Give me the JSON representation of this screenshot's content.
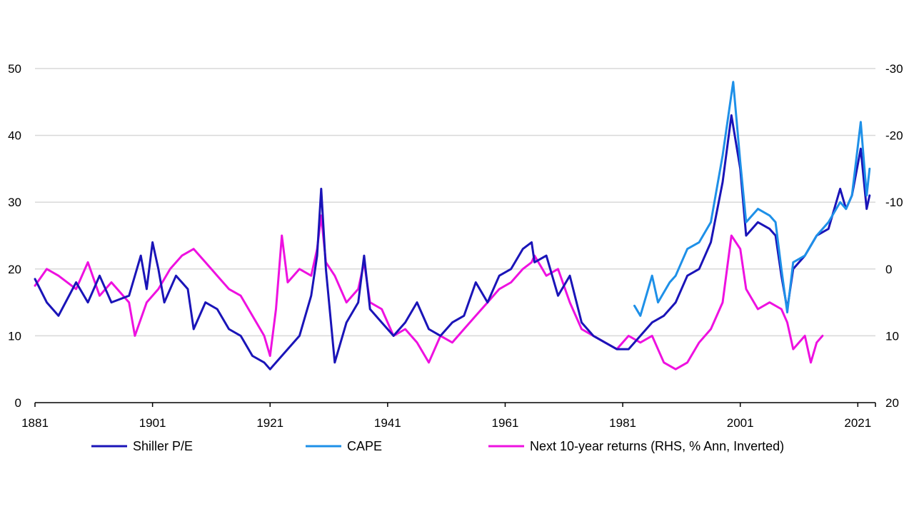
{
  "chart_data": {
    "type": "line",
    "x_ticks": [
      "1881",
      "1901",
      "1921",
      "1941",
      "1961",
      "1981",
      "2001",
      "2021"
    ],
    "xlim": [
      1881,
      2024
    ],
    "y_left": {
      "ticks": [
        "0",
        "10",
        "20",
        "30",
        "40",
        "50"
      ],
      "ylim": [
        0,
        50
      ]
    },
    "y_right": {
      "ticks": [
        "20",
        "10",
        "0",
        "-10",
        "-20",
        "-30"
      ],
      "ylim": [
        20,
        -30
      ],
      "inverted": true
    },
    "grid": true,
    "legend_position": "bottom",
    "series": [
      {
        "name": "Shiller P/E",
        "color": "#1a14b8",
        "axis": "left",
        "points": [
          [
            1881,
            18.5
          ],
          [
            1883,
            15
          ],
          [
            1885,
            13
          ],
          [
            1888,
            18
          ],
          [
            1890,
            15
          ],
          [
            1892,
            19
          ],
          [
            1894,
            15
          ],
          [
            1897,
            16
          ],
          [
            1899,
            22
          ],
          [
            1900,
            17
          ],
          [
            1901,
            24
          ],
          [
            1902,
            20
          ],
          [
            1903,
            15
          ],
          [
            1905,
            19
          ],
          [
            1907,
            17
          ],
          [
            1908,
            11
          ],
          [
            1910,
            15
          ],
          [
            1912,
            14
          ],
          [
            1914,
            11
          ],
          [
            1916,
            10
          ],
          [
            1918,
            7
          ],
          [
            1920,
            6
          ],
          [
            1921,
            5
          ],
          [
            1922,
            6
          ],
          [
            1924,
            8
          ],
          [
            1926,
            10
          ],
          [
            1928,
            16
          ],
          [
            1929,
            22
          ],
          [
            1929.7,
            32
          ],
          [
            1930.5,
            20
          ],
          [
            1932,
            6
          ],
          [
            1934,
            12
          ],
          [
            1936,
            15
          ],
          [
            1937,
            22
          ],
          [
            1938,
            14
          ],
          [
            1940,
            12
          ],
          [
            1942,
            10
          ],
          [
            1944,
            12
          ],
          [
            1946,
            15
          ],
          [
            1948,
            11
          ],
          [
            1950,
            10
          ],
          [
            1952,
            12
          ],
          [
            1954,
            13
          ],
          [
            1956,
            18
          ],
          [
            1958,
            15
          ],
          [
            1960,
            19
          ],
          [
            1962,
            20
          ],
          [
            1964,
            23
          ],
          [
            1965.5,
            24
          ],
          [
            1966,
            21
          ],
          [
            1968,
            22
          ],
          [
            1970,
            16
          ],
          [
            1972,
            19
          ],
          [
            1974,
            12
          ],
          [
            1976,
            10
          ],
          [
            1978,
            9
          ],
          [
            1980,
            8
          ],
          [
            1982,
            8
          ],
          [
            1984,
            10
          ],
          [
            1986,
            12
          ],
          [
            1988,
            13
          ],
          [
            1990,
            15
          ],
          [
            1992,
            19
          ],
          [
            1994,
            20
          ],
          [
            1996,
            24
          ],
          [
            1998,
            33
          ],
          [
            1999.5,
            43
          ],
          [
            2001,
            35
          ],
          [
            2002,
            25
          ],
          [
            2004,
            27
          ],
          [
            2006,
            26
          ],
          [
            2007,
            25
          ],
          [
            2008,
            19
          ],
          [
            2009,
            14
          ],
          [
            2010,
            20
          ],
          [
            2012,
            22
          ],
          [
            2014,
            25
          ],
          [
            2016,
            26
          ],
          [
            2018,
            32
          ],
          [
            2019,
            29
          ],
          [
            2020,
            31
          ],
          [
            2021.5,
            38
          ],
          [
            2022.5,
            29
          ],
          [
            2023,
            31
          ]
        ]
      },
      {
        "name": "CAPE",
        "color": "#1e90e8",
        "axis": "left",
        "points": [
          [
            1983,
            14.5
          ],
          [
            1984,
            13
          ],
          [
            1986,
            19
          ],
          [
            1987,
            15
          ],
          [
            1989,
            18
          ],
          [
            1990,
            19
          ],
          [
            1992,
            23
          ],
          [
            1994,
            24
          ],
          [
            1996,
            27
          ],
          [
            1998,
            37
          ],
          [
            1999.8,
            48
          ],
          [
            2001,
            36
          ],
          [
            2002,
            27
          ],
          [
            2004,
            29
          ],
          [
            2006,
            28
          ],
          [
            2007,
            27
          ],
          [
            2008,
            20
          ],
          [
            2009,
            13.5
          ],
          [
            2010,
            21
          ],
          [
            2012,
            22
          ],
          [
            2014,
            25
          ],
          [
            2016,
            27
          ],
          [
            2018,
            30
          ],
          [
            2019,
            29
          ],
          [
            2020,
            31
          ],
          [
            2021.5,
            42
          ],
          [
            2022.5,
            31
          ],
          [
            2023,
            35
          ]
        ]
      },
      {
        "name": "Next 10-year returns (RHS, % Ann, Inverted)",
        "color": "#ee11e0",
        "axis": "right",
        "points": [
          [
            1881,
            2.5
          ],
          [
            1883,
            0
          ],
          [
            1885,
            1
          ],
          [
            1888,
            3
          ],
          [
            1890,
            -1
          ],
          [
            1892,
            4
          ],
          [
            1894,
            2
          ],
          [
            1897,
            5
          ],
          [
            1898,
            10
          ],
          [
            1900,
            5
          ],
          [
            1902,
            3
          ],
          [
            1904,
            0
          ],
          [
            1906,
            -2
          ],
          [
            1908,
            -3
          ],
          [
            1910,
            -1
          ],
          [
            1912,
            1
          ],
          [
            1914,
            3
          ],
          [
            1916,
            4
          ],
          [
            1918,
            7
          ],
          [
            1920,
            10
          ],
          [
            1921,
            13
          ],
          [
            1922,
            6
          ],
          [
            1923,
            -5
          ],
          [
            1924,
            2
          ],
          [
            1926,
            0
          ],
          [
            1928,
            1
          ],
          [
            1929,
            -3
          ],
          [
            1929.7,
            -8
          ],
          [
            1930.5,
            -1
          ],
          [
            1932,
            1
          ],
          [
            1934,
            5
          ],
          [
            1936,
            3
          ],
          [
            1937,
            -1
          ],
          [
            1938,
            5
          ],
          [
            1940,
            6
          ],
          [
            1942,
            10
          ],
          [
            1944,
            9
          ],
          [
            1946,
            11
          ],
          [
            1948,
            14
          ],
          [
            1950,
            10
          ],
          [
            1952,
            11
          ],
          [
            1954,
            9
          ],
          [
            1956,
            7
          ],
          [
            1958,
            5
          ],
          [
            1960,
            3
          ],
          [
            1962,
            2
          ],
          [
            1964,
            0
          ],
          [
            1965.5,
            -1
          ],
          [
            1966,
            -2
          ],
          [
            1968,
            1
          ],
          [
            1970,
            0
          ],
          [
            1972,
            5
          ],
          [
            1974,
            9
          ],
          [
            1976,
            10
          ],
          [
            1978,
            11
          ],
          [
            1980,
            12
          ],
          [
            1982,
            10
          ],
          [
            1984,
            11
          ],
          [
            1986,
            10
          ],
          [
            1988,
            14
          ],
          [
            1990,
            15
          ],
          [
            1992,
            14
          ],
          [
            1994,
            11
          ],
          [
            1996,
            9
          ],
          [
            1998,
            5
          ],
          [
            1999.5,
            -5
          ],
          [
            2001,
            -3
          ],
          [
            2002,
            3
          ],
          [
            2004,
            6
          ],
          [
            2006,
            5
          ],
          [
            2008,
            6
          ],
          [
            2009,
            8
          ],
          [
            2010,
            12
          ],
          [
            2012,
            10
          ],
          [
            2013,
            14
          ],
          [
            2014,
            11
          ],
          [
            2015,
            10
          ]
        ]
      }
    ]
  }
}
